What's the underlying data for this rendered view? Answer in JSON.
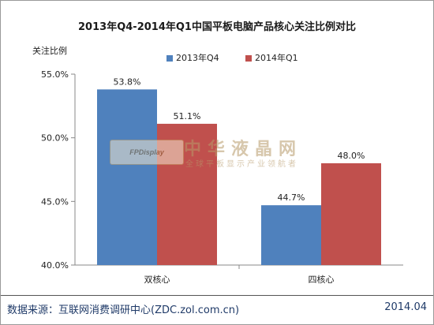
{
  "chart_data": {
    "type": "bar",
    "title": "2013年Q4-2014年Q1中国平板电脑产品核心关注比例对比",
    "ylabel": "关注比例",
    "xlabel": "",
    "categories": [
      "双核心",
      "四核心"
    ],
    "series": [
      {
        "name": "2013年Q4",
        "values": [
          53.8,
          44.7
        ],
        "labels": [
          "53.8%",
          "44.7%"
        ],
        "color": "#4f81bd"
      },
      {
        "name": "2014年Q1",
        "values": [
          51.1,
          48.0
        ],
        "labels": [
          "51.1%",
          "48.0%"
        ],
        "color": "#c0504d"
      }
    ],
    "ylim": [
      40,
      55
    ],
    "yticks": [
      40,
      45,
      50,
      55
    ],
    "ytick_labels": [
      "40.0%",
      "45.0%",
      "50.0%",
      "55.0%"
    ],
    "grid": false,
    "legend_position": "top"
  },
  "watermark": {
    "logo_text": "FPDisplay",
    "title": "中华液晶网",
    "subtitle": "全球平板显示产业领航者"
  },
  "footer": {
    "source": "数据来源：互联网消费调研中心(ZDC.zol.com.cn)",
    "date": "2014.04"
  }
}
